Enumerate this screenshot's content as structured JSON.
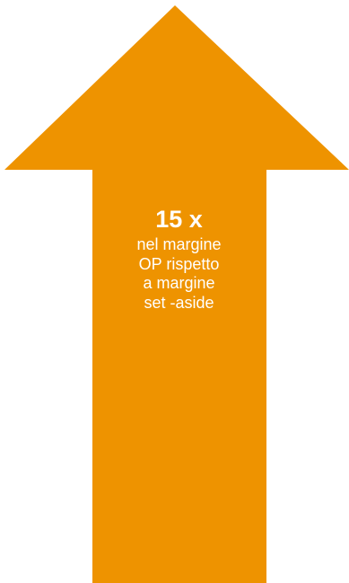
{
  "arrow": {
    "fill": "#EE9300",
    "direction": "up"
  },
  "label": {
    "headline": "15 x",
    "lines": [
      "nel margine",
      "OP rispetto",
      "a margine",
      "set -aside"
    ]
  }
}
